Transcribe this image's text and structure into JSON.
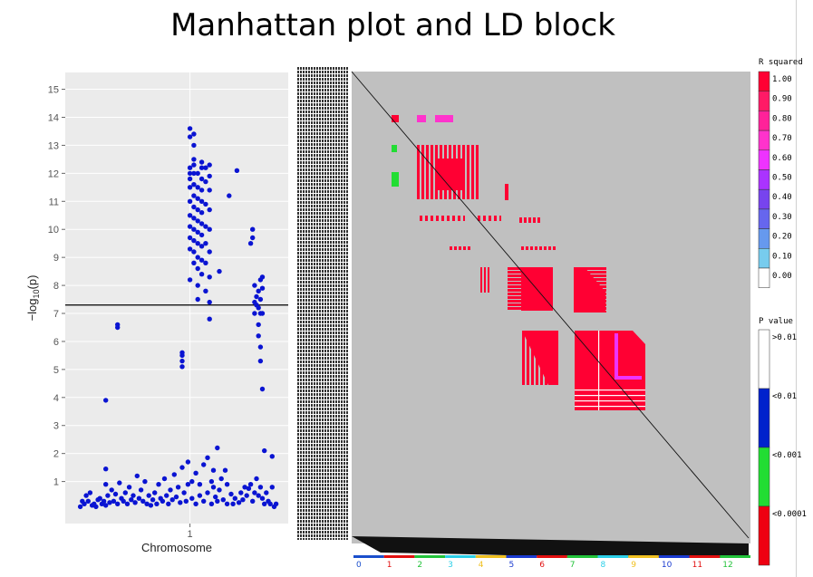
{
  "title": "Manhattan plot and LD block",
  "chart_data": [
    {
      "type": "scatter",
      "title": "",
      "xlabel": "Chromosome",
      "ylabel_prefix": "−log",
      "ylabel_sub": "10",
      "ylabel_suffix": "(p)",
      "x_tick_labels": [
        "1"
      ],
      "y_ticks": [
        1,
        2,
        3,
        4,
        5,
        6,
        7,
        8,
        9,
        10,
        11,
        12,
        13,
        14,
        15
      ],
      "ylim": [
        -0.5,
        15.6
      ],
      "xlim": [
        0,
        100
      ],
      "threshold": 7.3,
      "point_color": "#0a14d2",
      "points": [
        [
          4,
          0.1
        ],
        [
          5,
          0.3
        ],
        [
          6,
          0.2
        ],
        [
          7,
          0.5
        ],
        [
          8,
          0.3
        ],
        [
          9,
          0.6
        ],
        [
          10,
          0.15
        ],
        [
          11,
          0.2
        ],
        [
          12,
          0.1
        ],
        [
          13,
          0.35
        ],
        [
          14,
          0.4
        ],
        [
          15,
          0.2
        ],
        [
          16,
          0.3
        ],
        [
          17,
          0.15
        ],
        [
          17,
          0.9
        ],
        [
          17,
          1.45
        ],
        [
          17,
          3.9
        ],
        [
          18,
          0.5
        ],
        [
          19,
          0.25
        ],
        [
          20,
          0.7
        ],
        [
          21,
          0.3
        ],
        [
          22,
          0.55
        ],
        [
          23,
          0.2
        ],
        [
          23,
          6.5
        ],
        [
          23,
          6.6
        ],
        [
          24,
          0.95
        ],
        [
          25,
          0.4
        ],
        [
          26,
          0.3
        ],
        [
          27,
          0.6
        ],
        [
          28,
          0.2
        ],
        [
          29,
          0.8
        ],
        [
          30,
          0.35
        ],
        [
          31,
          0.5
        ],
        [
          32,
          0.25
        ],
        [
          33,
          1.2
        ],
        [
          34,
          0.4
        ],
        [
          35,
          0.7
        ],
        [
          36,
          0.3
        ],
        [
          37,
          1.0
        ],
        [
          38,
          0.2
        ],
        [
          39,
          0.5
        ],
        [
          40,
          0.15
        ],
        [
          41,
          0.35
        ],
        [
          42,
          0.6
        ],
        [
          43,
          0.2
        ],
        [
          44,
          0.9
        ],
        [
          45,
          0.4
        ],
        [
          46,
          0.3
        ],
        [
          47,
          1.1
        ],
        [
          48,
          0.5
        ],
        [
          49,
          0.2
        ],
        [
          50,
          0.7
        ],
        [
          51,
          0.35
        ],
        [
          52,
          1.25
        ],
        [
          53,
          0.45
        ],
        [
          54,
          0.8
        ],
        [
          55,
          0.25
        ],
        [
          56,
          1.5
        ],
        [
          56,
          5.1
        ],
        [
          56,
          5.3
        ],
        [
          56,
          5.5
        ],
        [
          56,
          5.6
        ],
        [
          57,
          0.6
        ],
        [
          58,
          0.3
        ],
        [
          59,
          1.7
        ],
        [
          59,
          0.9
        ],
        [
          60,
          8.2
        ],
        [
          60,
          9.3
        ],
        [
          60,
          9.7
        ],
        [
          60,
          10.1
        ],
        [
          60,
          10.5
        ],
        [
          60,
          11.0
        ],
        [
          60,
          11.5
        ],
        [
          60,
          11.8
        ],
        [
          60,
          12.0
        ],
        [
          60,
          12.2
        ],
        [
          60,
          13.3
        ],
        [
          60,
          13.6
        ],
        [
          61,
          0.4
        ],
        [
          61,
          1.0
        ],
        [
          62,
          8.8
        ],
        [
          62,
          9.2
        ],
        [
          62,
          9.6
        ],
        [
          62,
          10.0
        ],
        [
          62,
          10.4
        ],
        [
          62,
          10.8
        ],
        [
          62,
          11.2
        ],
        [
          62,
          11.6
        ],
        [
          62,
          12.0
        ],
        [
          62,
          12.3
        ],
        [
          62,
          12.5
        ],
        [
          62,
          13.0
        ],
        [
          62,
          13.4
        ],
        [
          63,
          0.2
        ],
        [
          63,
          1.3
        ],
        [
          64,
          7.5
        ],
        [
          64,
          8.0
        ],
        [
          64,
          8.6
        ],
        [
          64,
          9.0
        ],
        [
          64,
          9.5
        ],
        [
          64,
          9.9
        ],
        [
          64,
          10.3
        ],
        [
          64,
          10.7
        ],
        [
          64,
          11.1
        ],
        [
          64,
          11.5
        ],
        [
          64,
          12.0
        ],
        [
          65,
          0.5
        ],
        [
          65,
          0.9
        ],
        [
          66,
          8.4
        ],
        [
          66,
          8.9
        ],
        [
          66,
          9.4
        ],
        [
          66,
          9.8
        ],
        [
          66,
          10.2
        ],
        [
          66,
          10.6
        ],
        [
          66,
          11.0
        ],
        [
          66,
          11.4
        ],
        [
          66,
          11.8
        ],
        [
          66,
          12.2
        ],
        [
          66,
          12.4
        ],
        [
          67,
          0.3
        ],
        [
          67,
          1.6
        ],
        [
          68,
          7.8
        ],
        [
          68,
          8.8
        ],
        [
          68,
          9.5
        ],
        [
          68,
          10.1
        ],
        [
          68,
          10.9
        ],
        [
          68,
          11.7
        ],
        [
          68,
          12.2
        ],
        [
          69,
          0.6
        ],
        [
          69,
          1.85
        ],
        [
          70,
          6.8
        ],
        [
          70,
          7.4
        ],
        [
          70,
          8.3
        ],
        [
          70,
          9.2
        ],
        [
          70,
          10.0
        ],
        [
          70,
          10.7
        ],
        [
          70,
          11.4
        ],
        [
          70,
          11.9
        ],
        [
          70,
          12.3
        ],
        [
          71,
          0.2
        ],
        [
          71,
          1.0
        ],
        [
          72,
          0.8
        ],
        [
          72,
          1.4
        ],
        [
          73,
          0.45
        ],
        [
          74,
          2.2
        ],
        [
          74,
          0.3
        ],
        [
          75,
          8.5
        ],
        [
          75,
          0.7
        ],
        [
          76,
          1.1
        ],
        [
          77,
          0.35
        ],
        [
          78,
          1.4
        ],
        [
          79,
          0.2
        ],
        [
          79,
          0.9
        ],
        [
          80,
          11.2
        ],
        [
          81,
          0.55
        ],
        [
          82,
          0.2
        ],
        [
          83,
          0.4
        ],
        [
          84,
          12.1
        ],
        [
          85,
          0.25
        ],
        [
          86,
          0.6
        ],
        [
          87,
          0.35
        ],
        [
          88,
          0.8
        ],
        [
          89,
          0.5
        ],
        [
          90,
          0.75
        ],
        [
          91,
          0.9
        ],
        [
          91,
          9.5
        ],
        [
          92,
          9.7
        ],
        [
          92,
          10.0
        ],
        [
          92,
          0.3
        ],
        [
          93,
          7.0
        ],
        [
          93,
          7.4
        ],
        [
          93,
          8.0
        ],
        [
          93,
          0.6
        ],
        [
          94,
          7.3
        ],
        [
          94,
          7.6
        ],
        [
          94,
          1.1
        ],
        [
          95,
          6.2
        ],
        [
          95,
          6.6
        ],
        [
          95,
          7.2
        ],
        [
          95,
          7.8
        ],
        [
          95,
          0.5
        ],
        [
          96,
          5.3
        ],
        [
          96,
          5.8
        ],
        [
          96,
          7.0
        ],
        [
          96,
          7.5
        ],
        [
          96,
          8.2
        ],
        [
          96,
          0.8
        ],
        [
          97,
          4.3
        ],
        [
          97,
          7.0
        ],
        [
          97,
          7.9
        ],
        [
          97,
          8.3
        ],
        [
          97,
          0.4
        ],
        [
          98,
          2.1
        ],
        [
          98,
          0.2
        ],
        [
          99,
          0.6
        ],
        [
          100,
          0.3
        ],
        [
          101,
          0.2
        ],
        [
          102,
          1.9
        ],
        [
          102,
          0.8
        ],
        [
          103,
          0.1
        ],
        [
          104,
          0.2
        ]
      ]
    },
    {
      "type": "heatmap",
      "title": "",
      "description_color_bg": "#c0c0c0",
      "rsq_legend_title": "R squared",
      "rsq_levels": [
        "1.00",
        "0.90",
        "0.80",
        "0.70",
        "0.60",
        "0.50",
        "0.40",
        "0.30",
        "0.20",
        "0.10",
        "0.00"
      ],
      "rsq_colors": [
        "#ff0033",
        "#ff1a66",
        "#ff2299",
        "#ff33cc",
        "#ee33ff",
        "#aa33ff",
        "#7744ee",
        "#6666ee",
        "#6699ee",
        "#77ccee",
        "#ffffff"
      ],
      "pval_legend_title": "P value",
      "pval_levels": [
        ">0.01",
        "<0.01",
        "<0.001",
        "<0.0001"
      ],
      "pval_colors": [
        "#ffffff",
        "#0022cc",
        "#22dd33",
        "#ee0011"
      ],
      "chromosome_labels": [
        "0",
        "1",
        "2",
        "3",
        "4",
        "5",
        "6",
        "7",
        "8",
        "9",
        "10",
        "11",
        "12"
      ],
      "chromosome_colors": [
        "#1a4fcc",
        "#e21010",
        "#22c33a",
        "#2bcfe8",
        "#f0c020",
        "#1a3ad0",
        "#e21010",
        "#22c33a",
        "#2bcfe8",
        "#f0c020",
        "#1a3ad0",
        "#e21010",
        "#22c33a"
      ]
    }
  ]
}
